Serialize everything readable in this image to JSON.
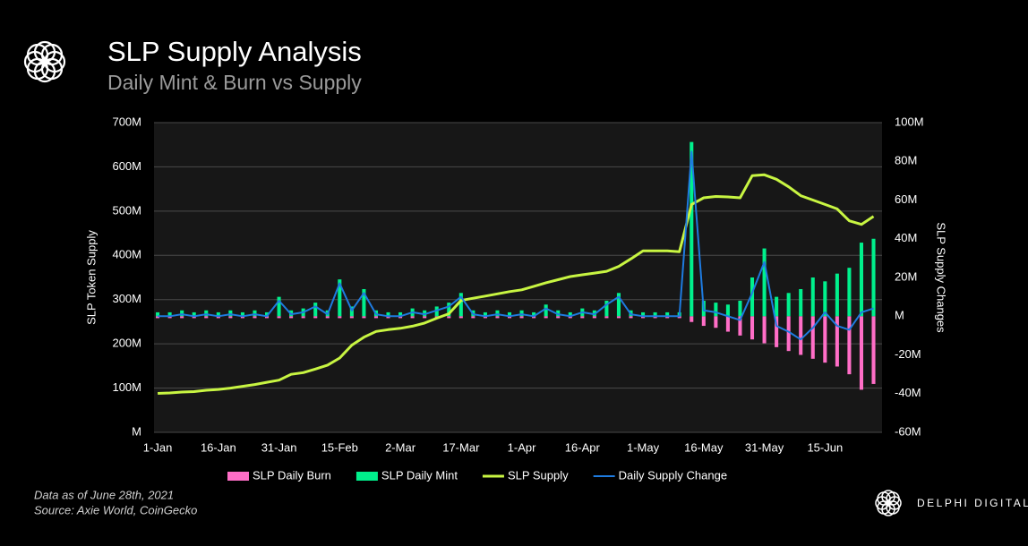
{
  "chart_data": {
    "type": "combo",
    "title": "SLP Supply Analysis",
    "subtitle": "Daily Mint & Burn vs Supply",
    "y_label": "SLP Token Supply",
    "y2_label": "SLP Supply Changes",
    "footnote": "Data as of June 28th, 2021",
    "source": "Source:  Axie World, CoinGecko",
    "brand": "DELPHI DIGITAL",
    "categories": [
      "1-Jan",
      null,
      null,
      null,
      null,
      "16-Jan",
      null,
      null,
      null,
      null,
      "31-Jan",
      null,
      null,
      null,
      null,
      "15-Feb",
      null,
      null,
      null,
      null,
      "2-Mar",
      null,
      null,
      null,
      null,
      "17-Mar",
      null,
      null,
      null,
      null,
      "1-Apr",
      null,
      null,
      null,
      null,
      "16-Apr",
      null,
      null,
      null,
      null,
      "1-May",
      null,
      null,
      null,
      null,
      "16-May",
      null,
      null,
      null,
      null,
      "31-May",
      null,
      null,
      null,
      null,
      "15-Jun",
      null,
      null,
      null,
      null
    ],
    "ylim": [
      0,
      700
    ],
    "yticks": [
      {
        "value": 0,
        "label": "M"
      },
      {
        "value": 100,
        "label": "100M"
      },
      {
        "value": 200,
        "label": "200M"
      },
      {
        "value": 300,
        "label": "300M"
      },
      {
        "value": 400,
        "label": "400M"
      },
      {
        "value": 500,
        "label": "500M"
      },
      {
        "value": 600,
        "label": "600M"
      },
      {
        "value": 700,
        "label": "700M"
      }
    ],
    "y2lim": [
      -60,
      100
    ],
    "y2ticks": [
      {
        "value": -60,
        "label": "-60M"
      },
      {
        "value": -40,
        "label": "-40M"
      },
      {
        "value": -20,
        "label": "-20M"
      },
      {
        "value": 0,
        "label": "M"
      },
      {
        "value": 20,
        "label": "20M"
      },
      {
        "value": 40,
        "label": "40M"
      },
      {
        "value": 60,
        "label": "60M"
      },
      {
        "value": 80,
        "label": "80M"
      },
      {
        "value": 100,
        "label": "100M"
      }
    ],
    "grid": true,
    "series": [
      {
        "name": "SLP Daily Burn",
        "type": "bar",
        "axis": "y2",
        "color": "#ff6ec7",
        "values": [
          -1,
          -1,
          -1,
          -1,
          -1,
          -1,
          -1,
          -1,
          -1,
          -1,
          -1,
          -1,
          -1,
          -1,
          -1,
          -1,
          -1,
          -1,
          -1,
          -1,
          -1,
          -1,
          -1,
          -1,
          -1,
          -1,
          -1,
          -1,
          -1,
          -1,
          -1,
          -1,
          -1,
          -1,
          -1,
          -1,
          -1,
          -1,
          -1,
          -1,
          -1,
          -1,
          -1,
          -1,
          -3,
          -5,
          -6,
          -8,
          -10,
          -12,
          -14,
          -16,
          -18,
          -20,
          -22,
          -24,
          -26,
          -30,
          -38,
          -35
        ]
      },
      {
        "name": "SLP Daily Mint",
        "type": "bar",
        "axis": "y2",
        "color": "#00f08c",
        "values": [
          2,
          2,
          3,
          2,
          3,
          2,
          3,
          2,
          3,
          2,
          10,
          3,
          4,
          7,
          3,
          19,
          5,
          14,
          3,
          2,
          2,
          4,
          3,
          5,
          7,
          12,
          3,
          2,
          3,
          2,
          3,
          2,
          6,
          3,
          2,
          4,
          3,
          8,
          12,
          3,
          2,
          2,
          2,
          2,
          90,
          8,
          7,
          6,
          8,
          20,
          35,
          10,
          12,
          14,
          20,
          18,
          22,
          25,
          38,
          40
        ]
      },
      {
        "name": "SLP Supply",
        "type": "line",
        "axis": "y",
        "color": "#c8f542",
        "width": 3,
        "values": [
          88,
          89,
          91,
          92,
          95,
          97,
          100,
          104,
          108,
          113,
          118,
          131,
          135,
          143,
          152,
          168,
          197,
          215,
          228,
          232,
          235,
          240,
          247,
          258,
          268,
          298,
          303,
          308,
          313,
          318,
          322,
          330,
          338,
          345,
          352,
          356,
          360,
          364,
          375,
          392,
          410,
          410,
          410,
          408,
          515,
          530,
          533,
          532,
          530,
          580,
          582,
          572,
          555,
          535,
          525,
          515,
          505,
          478,
          470,
          488
        ]
      },
      {
        "name": "Daily Supply Change",
        "type": "line",
        "axis": "y2",
        "color": "#1e7be0",
        "width": 2,
        "values": [
          0,
          0,
          1,
          0,
          1,
          0,
          1,
          0,
          1,
          0,
          8,
          1,
          2,
          5,
          1,
          17,
          3,
          12,
          1,
          0,
          0,
          2,
          1,
          3,
          5,
          10,
          1,
          0,
          1,
          0,
          1,
          0,
          4,
          1,
          0,
          2,
          1,
          6,
          10,
          1,
          0,
          0,
          0,
          0,
          85,
          3,
          2,
          0,
          -2,
          12,
          28,
          -5,
          -8,
          -12,
          -6,
          2,
          -5,
          -7,
          2,
          4
        ]
      }
    ]
  }
}
